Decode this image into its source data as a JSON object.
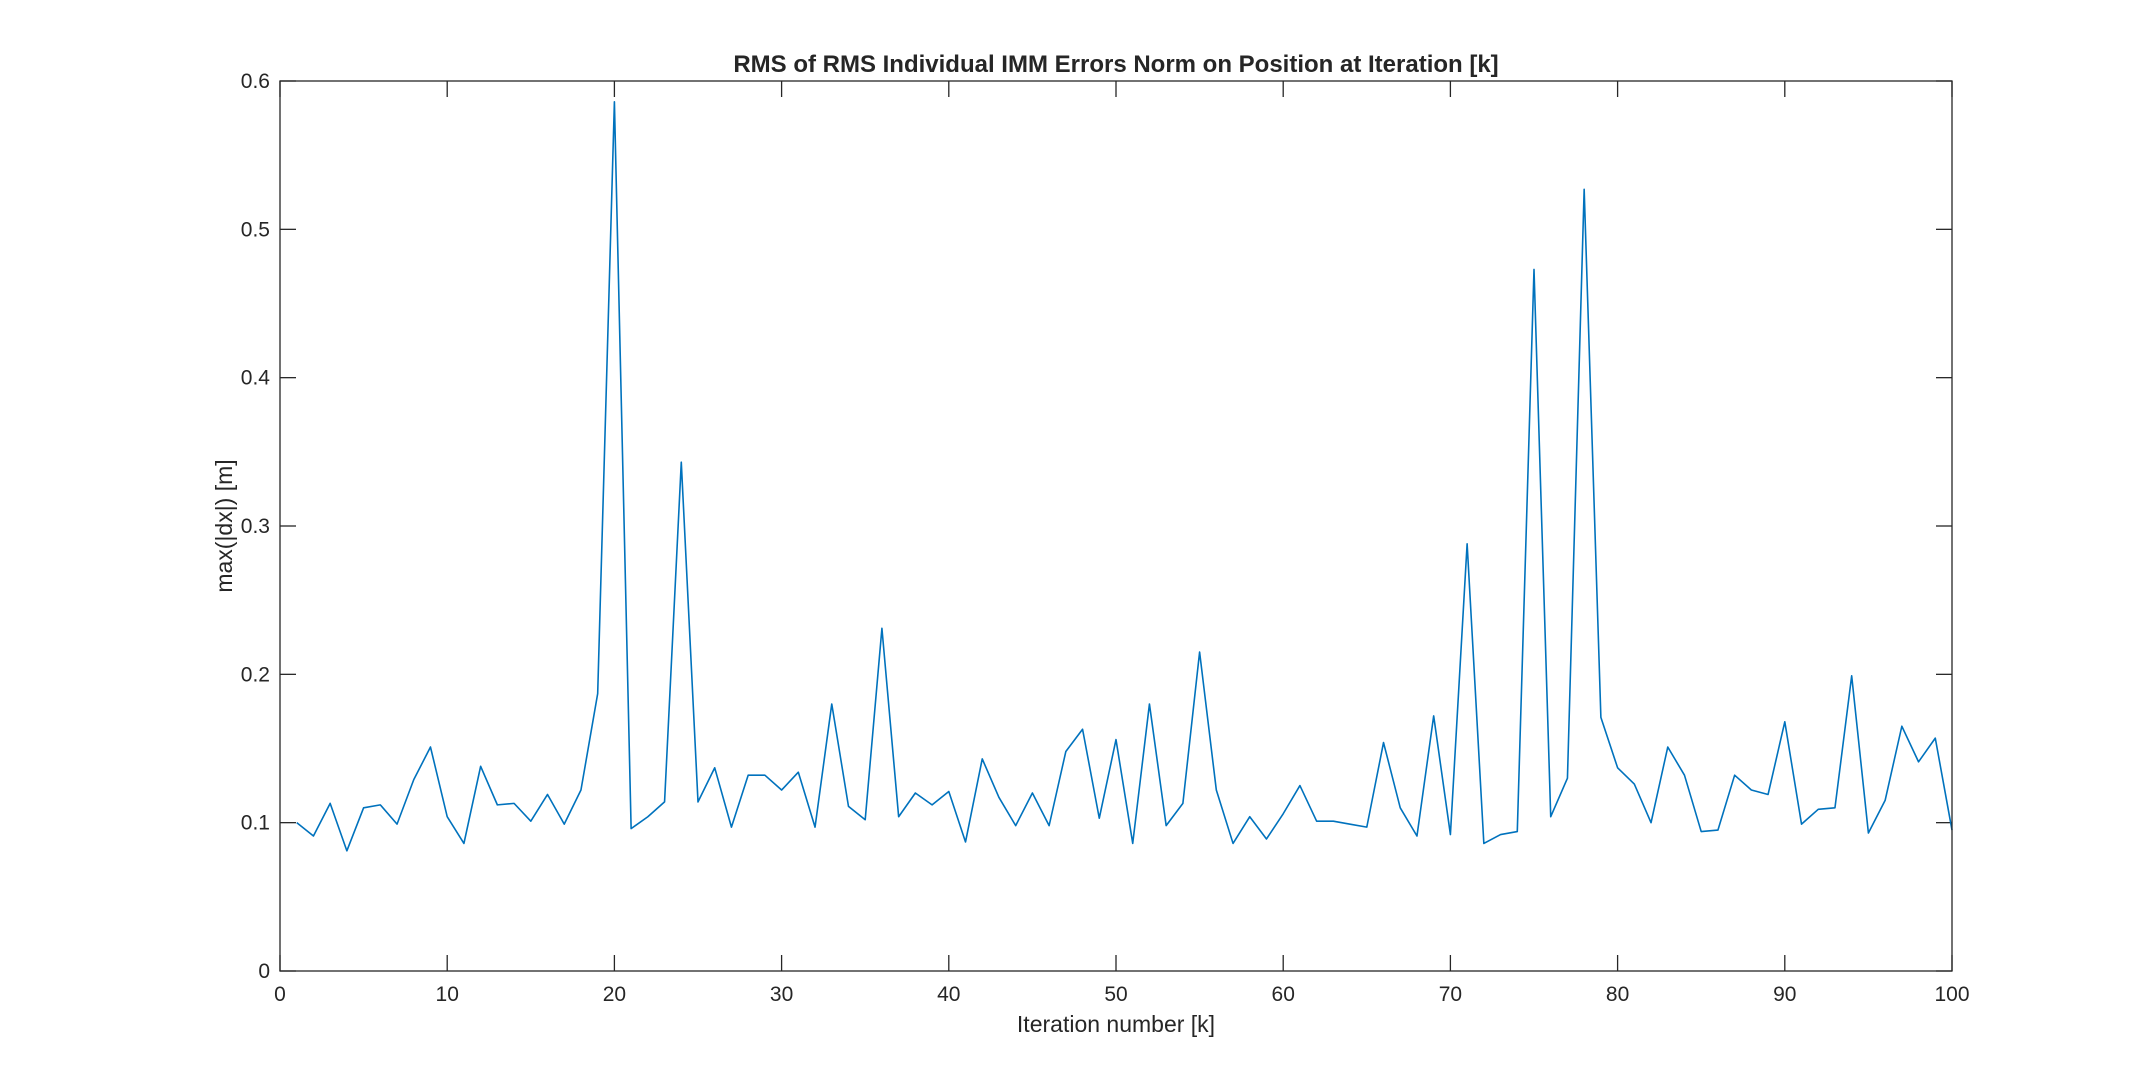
{
  "chart_data": {
    "type": "line",
    "title": "RMS of RMS Individual IMM Errors Norm on Position at Iteration [k]",
    "xlabel": "Iteration number [k]",
    "ylabel": "max(|dx|) [m]",
    "xlim": [
      0,
      100
    ],
    "ylim": [
      0,
      0.6
    ],
    "xticks": [
      0,
      10,
      20,
      30,
      40,
      50,
      60,
      70,
      80,
      90,
      100
    ],
    "xtick_labels": [
      "0",
      "10",
      "20",
      "30",
      "40",
      "50",
      "60",
      "70",
      "80",
      "90",
      "100"
    ],
    "yticks": [
      0,
      0.1,
      0.2,
      0.3,
      0.4,
      0.5,
      0.6
    ],
    "ytick_labels": [
      "0",
      "0.1",
      "0.2",
      "0.3",
      "0.4",
      "0.5",
      "0.6"
    ],
    "grid": false,
    "line_color": "#0072BD",
    "series": [
      {
        "x": [
          1,
          2,
          3,
          4,
          5,
          6,
          7,
          8,
          9,
          10,
          11,
          12,
          13,
          14,
          15,
          16,
          17,
          18,
          19,
          20,
          21,
          22,
          23,
          24,
          25,
          26,
          27,
          28,
          29,
          30,
          31,
          32,
          33,
          34,
          35,
          36,
          37,
          38,
          39,
          40,
          41,
          42,
          43,
          44,
          45,
          46,
          47,
          48,
          49,
          50,
          51,
          52,
          53,
          54,
          55,
          56,
          57,
          58,
          59,
          60,
          61,
          62,
          63,
          64,
          65,
          66,
          67,
          68,
          69,
          70,
          71,
          72,
          73,
          74,
          75,
          76,
          77,
          78,
          79,
          80,
          81,
          82,
          83,
          84,
          85,
          86,
          87,
          88,
          89,
          90,
          91,
          92,
          93,
          94,
          95,
          96,
          97,
          98,
          99,
          100
        ],
        "values": [
          0.1,
          0.091,
          0.113,
          0.081,
          0.11,
          0.112,
          0.099,
          0.129,
          0.151,
          0.104,
          0.086,
          0.138,
          0.112,
          0.113,
          0.101,
          0.119,
          0.099,
          0.122,
          0.187,
          0.586,
          0.096,
          0.104,
          0.114,
          0.343,
          0.114,
          0.137,
          0.097,
          0.132,
          0.132,
          0.122,
          0.134,
          0.097,
          0.18,
          0.111,
          0.102,
          0.231,
          0.104,
          0.12,
          0.112,
          0.121,
          0.087,
          0.143,
          0.117,
          0.098,
          0.12,
          0.098,
          0.148,
          0.163,
          0.103,
          0.156,
          0.086,
          0.18,
          0.098,
          0.113,
          0.215,
          0.122,
          0.086,
          0.104,
          0.089,
          0.106,
          0.125,
          0.101,
          0.101,
          0.099,
          0.097,
          0.154,
          0.11,
          0.091,
          0.172,
          0.092,
          0.288,
          0.086,
          0.092,
          0.094,
          0.473,
          0.104,
          0.13,
          0.527,
          0.171,
          0.137,
          0.126,
          0.1,
          0.151,
          0.132,
          0.094,
          0.095,
          0.132,
          0.122,
          0.119,
          0.168,
          0.099,
          0.109,
          0.11,
          0.199,
          0.093,
          0.115,
          0.165,
          0.141,
          0.157,
          0.095
        ]
      }
    ]
  }
}
